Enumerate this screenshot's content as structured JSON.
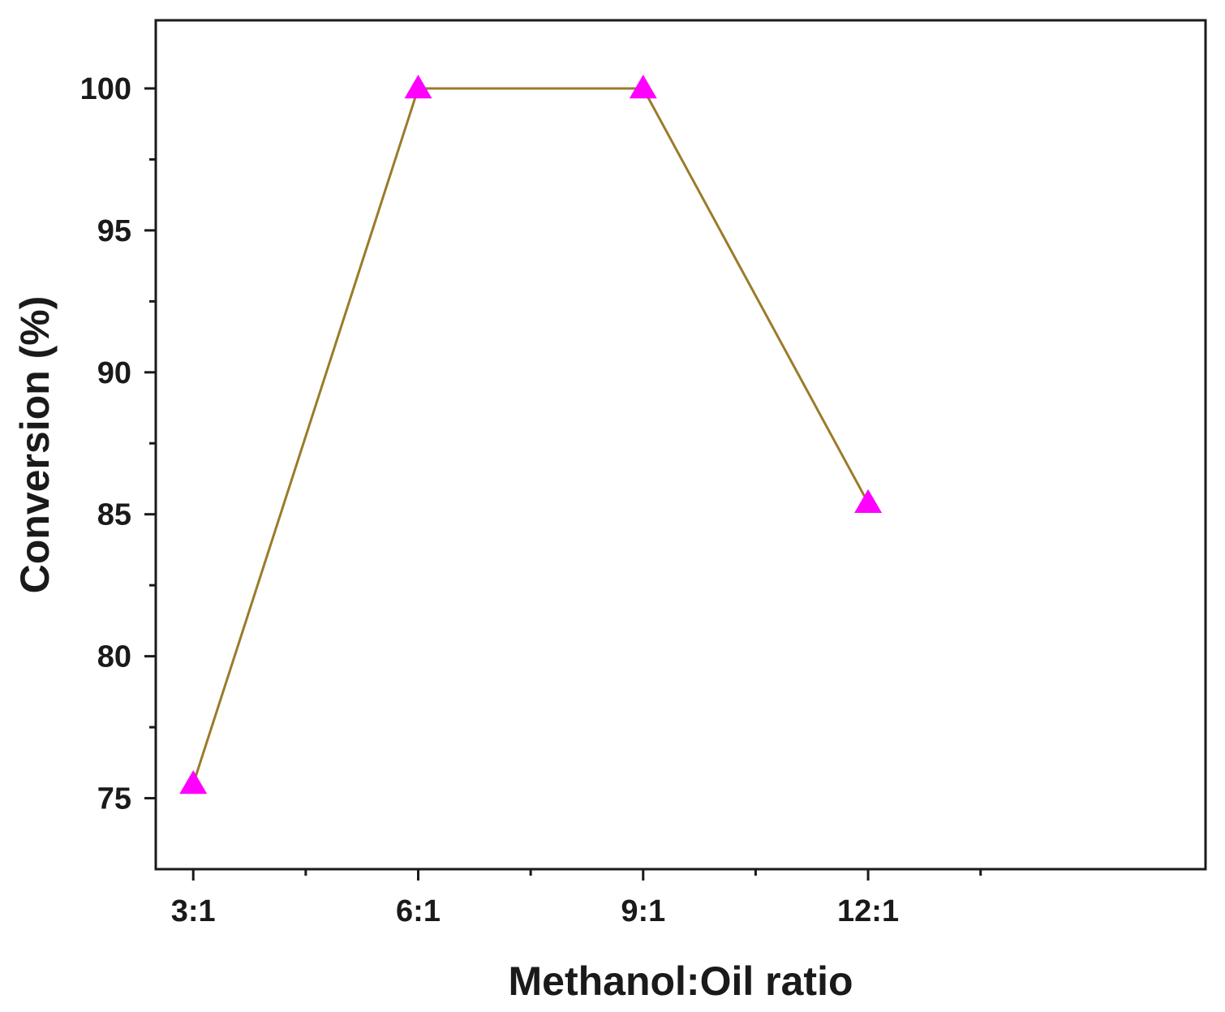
{
  "chart_data": {
    "type": "line",
    "title": "",
    "xlabel": "Methanol:Oil ratio",
    "ylabel": "Conversion (%)",
    "categories": [
      "3:1",
      "6:1",
      "9:1",
      "12:1"
    ],
    "series": [
      {
        "values": [
          75.5,
          100,
          100,
          85.4
        ],
        "marker": "triangle-up"
      }
    ],
    "xlim": [
      2.5,
      16.5
    ],
    "ylim": [
      72.5,
      102.4
    ],
    "yticks": [
      75,
      80,
      85,
      90,
      95,
      100
    ],
    "ytick_labels": [
      "75",
      "80",
      "85",
      "90",
      "95",
      "100"
    ],
    "grid": false,
    "line_color": "#9b7b2a",
    "marker_color": "#ff00ff"
  }
}
